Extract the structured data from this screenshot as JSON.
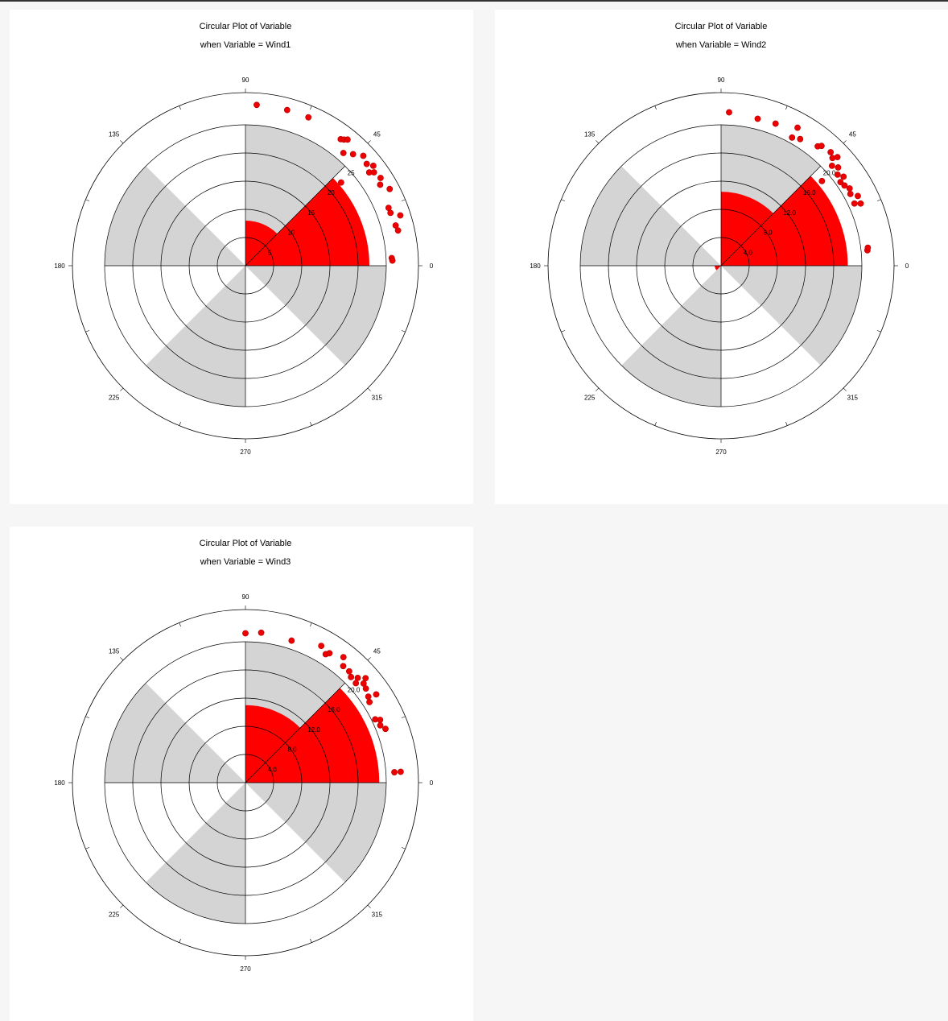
{
  "chart_data": [
    {
      "type": "polar-rose",
      "title": "Circular Plot of Variable",
      "subtitle": "when Variable = Wind1",
      "angle_labels": [
        "0",
        "45",
        "90",
        "135",
        "180",
        "225",
        "270",
        "315"
      ],
      "radial_ticks": [
        5,
        10,
        15,
        20,
        25
      ],
      "radial_labels": [
        "5",
        "10",
        "15",
        "20",
        "25"
      ],
      "rmax": 25,
      "sectors": [
        {
          "from": 0,
          "to": 45,
          "r": 22
        },
        {
          "from": 45,
          "to": 90,
          "r": 8
        }
      ],
      "points": [
        [
          86,
          28.6
        ],
        [
          75,
          28.6
        ],
        [
          67,
          28.6
        ],
        [
          53,
          28.1
        ],
        [
          52,
          28.4
        ],
        [
          51,
          28.8
        ],
        [
          49,
          26.5
        ],
        [
          46,
          27.5
        ],
        [
          43,
          28.6
        ],
        [
          40,
          28.1
        ],
        [
          38,
          28.8
        ],
        [
          37,
          27.5
        ],
        [
          36,
          28.2
        ],
        [
          33,
          28.6
        ],
        [
          31,
          27.9
        ],
        [
          28,
          29.0
        ],
        [
          22,
          27.4
        ],
        [
          20,
          27.4
        ],
        [
          18,
          28.9
        ],
        [
          15,
          27.6
        ],
        [
          13,
          27.8
        ],
        [
          3,
          26.0
        ],
        [
          2,
          26.1
        ],
        [
          41,
          22.5
        ]
      ],
      "point_color": "#ee0000",
      "sector_color": "#ff0000",
      "band_color": "#d4d4d4"
    },
    {
      "type": "polar-rose",
      "title": "Circular Plot of Variable",
      "subtitle": "when Variable = Wind2",
      "angle_labels": [
        "0",
        "45",
        "90",
        "135",
        "180",
        "225",
        "270",
        "315"
      ],
      "radial_ticks": [
        4,
        8,
        12,
        16,
        20
      ],
      "radial_labels": [
        "4.0",
        "8.0",
        "12.0",
        "16.0",
        "20.0"
      ],
      "rmax": 20,
      "sectors": [
        {
          "from": 0,
          "to": 45,
          "r": 18
        },
        {
          "from": 45,
          "to": 90,
          "r": 10.5
        },
        {
          "from": 180,
          "to": 225,
          "r": 0.9
        }
      ],
      "points": [
        [
          87,
          21.8
        ],
        [
          76,
          21.5
        ],
        [
          69,
          21.6
        ],
        [
          61,
          22.4
        ],
        [
          61,
          20.8
        ],
        [
          58,
          21.2
        ],
        [
          51,
          21.8
        ],
        [
          50,
          22.2
        ],
        [
          46,
          22.4
        ],
        [
          44,
          22.0
        ],
        [
          43,
          22.6
        ],
        [
          42,
          21.2
        ],
        [
          40,
          21.7
        ],
        [
          38,
          21.0
        ],
        [
          36,
          21.5
        ],
        [
          35,
          20.7
        ],
        [
          33,
          20.9
        ],
        [
          31,
          21.3
        ],
        [
          29,
          21.0
        ],
        [
          27,
          21.8
        ],
        [
          25,
          20.9
        ],
        [
          24,
          21.7
        ],
        [
          6,
          20.9
        ],
        [
          7,
          21.0
        ],
        [
          40,
          18.7
        ]
      ],
      "point_color": "#ee0000",
      "sector_color": "#ff0000",
      "band_color": "#d4d4d4"
    },
    {
      "type": "polar-rose",
      "title": "Circular Plot of Variable",
      "subtitle": "when Variable = Wind3",
      "angle_labels": [
        "0",
        "45",
        "90",
        "135",
        "180",
        "225",
        "270",
        "315"
      ],
      "radial_ticks": [
        4,
        8,
        12,
        16,
        20
      ],
      "radial_labels": [
        "4.0",
        "8.0",
        "12.0",
        "16.0",
        "20.0"
      ],
      "rmax": 20,
      "sectors": [
        {
          "from": 0,
          "to": 45,
          "r": 19
        },
        {
          "from": 45,
          "to": 90,
          "r": 11
        }
      ],
      "points": [
        [
          90,
          21.2
        ],
        [
          84,
          21.4
        ],
        [
          72,
          21.2
        ],
        [
          61,
          22.2
        ],
        [
          58,
          21.5
        ],
        [
          57,
          21.9
        ],
        [
          52,
          22.6
        ],
        [
          50,
          21.6
        ],
        [
          47,
          21.6
        ],
        [
          45,
          21.2
        ],
        [
          43,
          21.8
        ],
        [
          42,
          21.1
        ],
        [
          41,
          22.6
        ],
        [
          40,
          21.9
        ],
        [
          38,
          21.7
        ],
        [
          35,
          21.3
        ],
        [
          34,
          22.4
        ],
        [
          33,
          21.0
        ],
        [
          26,
          20.5
        ],
        [
          25,
          21.1
        ],
        [
          23,
          20.8
        ],
        [
          21,
          21.3
        ],
        [
          4,
          21.2
        ],
        [
          4,
          22.1
        ]
      ],
      "point_color": "#ee0000",
      "sector_color": "#ff0000",
      "band_color": "#d4d4d4"
    }
  ]
}
